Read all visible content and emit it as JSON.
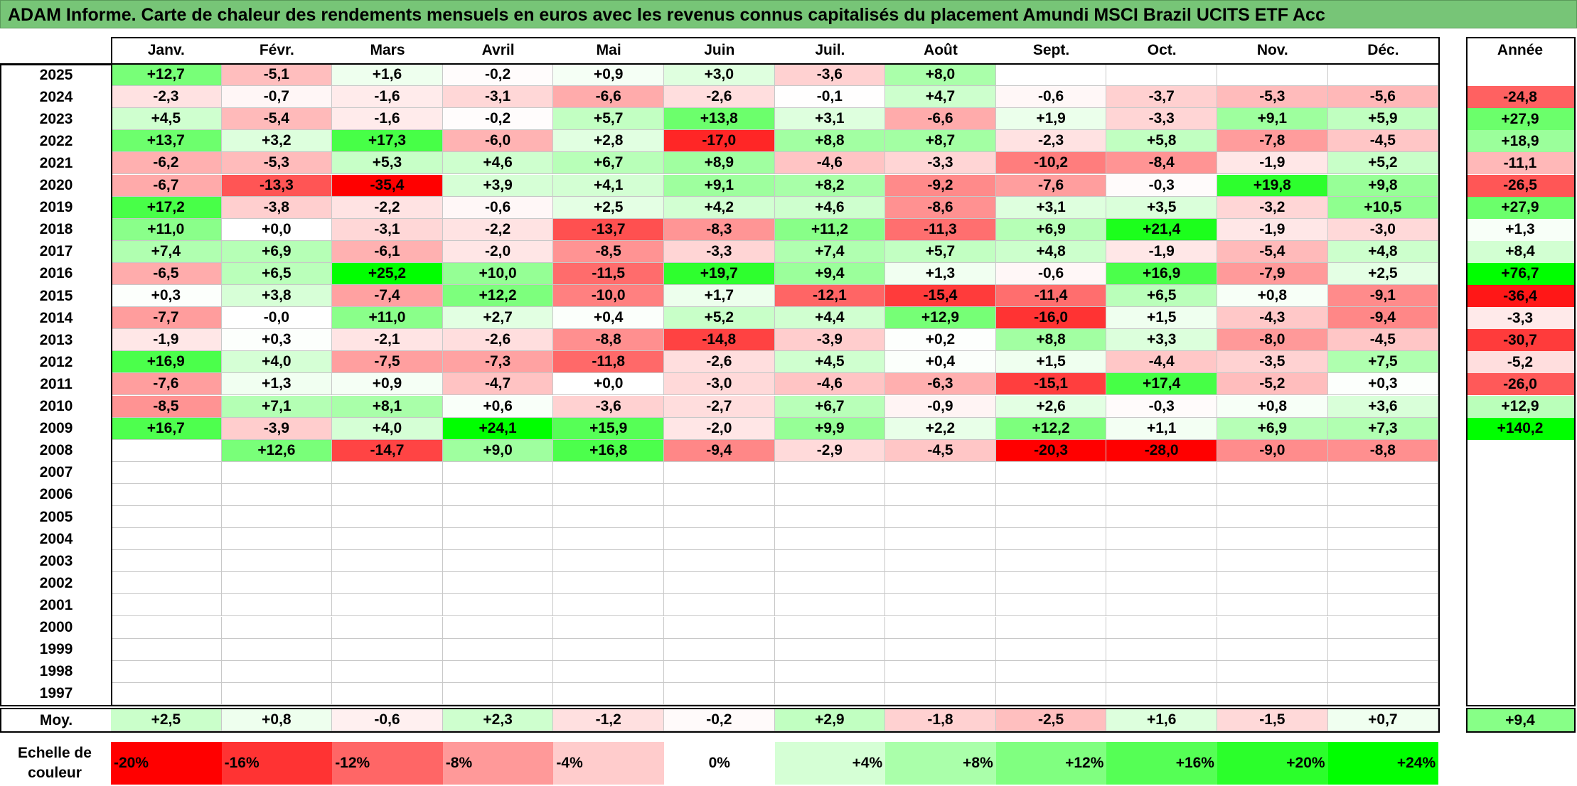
{
  "title": "ADAM Informe. Carte de chaleur des rendements mensuels en euros avec les revenus connus capitalisés du placement Amundi MSCI Brazil UCITS ETF Acc",
  "chart_data": {
    "type": "heatmap",
    "title": "ADAM Informe. Carte de chaleur des rendements mensuels en euros avec les revenus connus capitalisés du placement Amundi MSCI Brazil UCITS ETF Acc",
    "months": [
      "Janv.",
      "Févr.",
      "Mars",
      "Avril",
      "Mai",
      "Juin",
      "Juil.",
      "Août",
      "Sept.",
      "Oct.",
      "Nov.",
      "Déc."
    ],
    "year_header": "Année",
    "rows": [
      {
        "year": "2025",
        "months": [
          "+12,7",
          "-5,1",
          "+1,6",
          "-0,2",
          "+0,9",
          "+3,0",
          "-3,6",
          "+8,0",
          "",
          "",
          "",
          ""
        ],
        "annual": ""
      },
      {
        "year": "2024",
        "months": [
          "-2,3",
          "-0,7",
          "-1,6",
          "-3,1",
          "-6,6",
          "-2,6",
          "-0,1",
          "+4,7",
          "-0,6",
          "-3,7",
          "-5,3",
          "-5,6"
        ],
        "annual": "-24,8"
      },
      {
        "year": "2023",
        "months": [
          "+4,5",
          "-5,4",
          "-1,6",
          "-0,2",
          "+5,7",
          "+13,8",
          "+3,1",
          "-6,6",
          "+1,9",
          "-3,3",
          "+9,1",
          "+5,9"
        ],
        "annual": "+27,9"
      },
      {
        "year": "2022",
        "months": [
          "+13,7",
          "+3,2",
          "+17,3",
          "-6,0",
          "+2,8",
          "-17,0",
          "+8,8",
          "+8,7",
          "-2,3",
          "+5,8",
          "-7,8",
          "-4,5"
        ],
        "annual": "+18,9"
      },
      {
        "year": "2021",
        "months": [
          "-6,2",
          "-5,3",
          "+5,3",
          "+4,6",
          "+6,7",
          "+8,9",
          "-4,6",
          "-3,3",
          "-10,2",
          "-8,4",
          "-1,9",
          "+5,2"
        ],
        "annual": "-11,1"
      },
      {
        "year": "2020",
        "months": [
          "-6,7",
          "-13,3",
          "-35,4",
          "+3,9",
          "+4,1",
          "+9,1",
          "+8,2",
          "-9,2",
          "-7,6",
          "-0,3",
          "+19,8",
          "+9,8"
        ],
        "annual": "-26,5"
      },
      {
        "year": "2019",
        "months": [
          "+17,2",
          "-3,8",
          "-2,2",
          "-0,6",
          "+2,5",
          "+4,2",
          "+4,6",
          "-8,6",
          "+3,1",
          "+3,5",
          "-3,2",
          "+10,5"
        ],
        "annual": "+27,9"
      },
      {
        "year": "2018",
        "months": [
          "+11,0",
          "+0,0",
          "-3,1",
          "-2,2",
          "-13,7",
          "-8,3",
          "+11,2",
          "-11,3",
          "+6,9",
          "+21,4",
          "-1,9",
          "-3,0"
        ],
        "annual": "+1,3"
      },
      {
        "year": "2017",
        "months": [
          "+7,4",
          "+6,9",
          "-6,1",
          "-2,0",
          "-8,5",
          "-3,3",
          "+7,4",
          "+5,7",
          "+4,8",
          "-1,9",
          "-5,4",
          "+4,8"
        ],
        "annual": "+8,4"
      },
      {
        "year": "2016",
        "months": [
          "-6,5",
          "+6,5",
          "+25,2",
          "+10,0",
          "-11,5",
          "+19,7",
          "+9,4",
          "+1,3",
          "-0,6",
          "+16,9",
          "-7,9",
          "+2,5"
        ],
        "annual": "+76,7"
      },
      {
        "year": "2015",
        "months": [
          "+0,3",
          "+3,8",
          "-7,4",
          "+12,2",
          "-10,0",
          "+1,7",
          "-12,1",
          "-15,4",
          "-11,4",
          "+6,5",
          "+0,8",
          "-9,1"
        ],
        "annual": "-36,4"
      },
      {
        "year": "2014",
        "months": [
          "-7,7",
          "-0,0",
          "+11,0",
          "+2,7",
          "+0,4",
          "+5,2",
          "+4,4",
          "+12,9",
          "-16,0",
          "+1,5",
          "-4,3",
          "-9,4"
        ],
        "annual": "-3,3"
      },
      {
        "year": "2013",
        "months": [
          "-1,9",
          "+0,3",
          "-2,1",
          "-2,6",
          "-8,8",
          "-14,8",
          "-3,9",
          "+0,2",
          "+8,8",
          "+3,3",
          "-8,0",
          "-4,5"
        ],
        "annual": "-30,7"
      },
      {
        "year": "2012",
        "months": [
          "+16,9",
          "+4,0",
          "-7,5",
          "-7,3",
          "-11,8",
          "-2,6",
          "+4,5",
          "+0,4",
          "+1,5",
          "-4,4",
          "-3,5",
          "+7,5"
        ],
        "annual": "-5,2"
      },
      {
        "year": "2011",
        "months": [
          "-7,6",
          "+1,3",
          "+0,9",
          "-4,7",
          "+0,0",
          "-3,0",
          "-4,6",
          "-6,3",
          "-15,1",
          "+17,4",
          "-5,2",
          "+0,3"
        ],
        "annual": "-26,0"
      },
      {
        "year": "2010",
        "months": [
          "-8,5",
          "+7,1",
          "+8,1",
          "+0,6",
          "-3,6",
          "-2,7",
          "+6,7",
          "-0,9",
          "+2,6",
          "-0,3",
          "+0,8",
          "+3,6"
        ],
        "annual": "+12,9"
      },
      {
        "year": "2009",
        "months": [
          "+16,7",
          "-3,9",
          "+4,0",
          "+24,1",
          "+15,9",
          "-2,0",
          "+9,9",
          "+2,2",
          "+12,2",
          "+1,1",
          "+6,9",
          "+7,3"
        ],
        "annual": "+140,2"
      },
      {
        "year": "2008",
        "months": [
          "",
          "+12,6",
          "-14,7",
          "+9,0",
          "+16,8",
          "-9,4",
          "-2,9",
          "-4,5",
          "-20,3",
          "-28,0",
          "-9,0",
          "-8,8"
        ],
        "annual": ""
      },
      {
        "year": "2007",
        "months": [
          "",
          "",
          "",
          "",
          "",
          "",
          "",
          "",
          "",
          "",
          "",
          ""
        ],
        "annual": ""
      },
      {
        "year": "2006",
        "months": [
          "",
          "",
          "",
          "",
          "",
          "",
          "",
          "",
          "",
          "",
          "",
          ""
        ],
        "annual": ""
      },
      {
        "year": "2005",
        "months": [
          "",
          "",
          "",
          "",
          "",
          "",
          "",
          "",
          "",
          "",
          "",
          ""
        ],
        "annual": ""
      },
      {
        "year": "2004",
        "months": [
          "",
          "",
          "",
          "",
          "",
          "",
          "",
          "",
          "",
          "",
          "",
          ""
        ],
        "annual": ""
      },
      {
        "year": "2003",
        "months": [
          "",
          "",
          "",
          "",
          "",
          "",
          "",
          "",
          "",
          "",
          "",
          ""
        ],
        "annual": ""
      },
      {
        "year": "2002",
        "months": [
          "",
          "",
          "",
          "",
          "",
          "",
          "",
          "",
          "",
          "",
          "",
          ""
        ],
        "annual": ""
      },
      {
        "year": "2001",
        "months": [
          "",
          "",
          "",
          "",
          "",
          "",
          "",
          "",
          "",
          "",
          "",
          ""
        ],
        "annual": ""
      },
      {
        "year": "2000",
        "months": [
          "",
          "",
          "",
          "",
          "",
          "",
          "",
          "",
          "",
          "",
          "",
          ""
        ],
        "annual": ""
      },
      {
        "year": "1999",
        "months": [
          "",
          "",
          "",
          "",
          "",
          "",
          "",
          "",
          "",
          "",
          "",
          ""
        ],
        "annual": ""
      },
      {
        "year": "1998",
        "months": [
          "",
          "",
          "",
          "",
          "",
          "",
          "",
          "",
          "",
          "",
          "",
          ""
        ],
        "annual": ""
      },
      {
        "year": "1997",
        "months": [
          "",
          "",
          "",
          "",
          "",
          "",
          "",
          "",
          "",
          "",
          "",
          ""
        ],
        "annual": ""
      }
    ],
    "average": {
      "label": "Moy.",
      "months": [
        "+2,5",
        "+0,8",
        "-0,6",
        "+2,3",
        "-1,2",
        "-0,2",
        "+2,9",
        "-1,8",
        "-2,5",
        "+1,6",
        "-1,5",
        "+0,7"
      ],
      "annual": "+9,4"
    },
    "legend": {
      "label_line1": "Echelle de",
      "label_line2": "couleur",
      "stops": [
        "-20%",
        "-16%",
        "-12%",
        "-8%",
        "-4%",
        "0%",
        "+4%",
        "+8%",
        "+12%",
        "+16%",
        "+20%",
        "+24%"
      ],
      "negative_color": "#ff0000",
      "neutral_color": "#ffffff",
      "positive_color": "#00ff00"
    }
  }
}
